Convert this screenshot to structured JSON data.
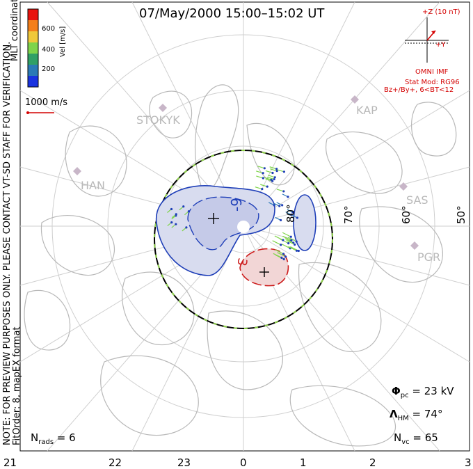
{
  "title": "07/May/2000 15:00–15:02 UT",
  "note_line1": "NOTE: FOR PREVIEW PURPOSES ONLY. PLEASE CONTACT VT-SD STAFF FOR VERIFICATION.",
  "note_line2": "FitOrder: 8, mapEX format",
  "coordinates": "MLT coordinates",
  "colorbar": {
    "label": "Vel [m/s]",
    "ticks": [
      "600",
      "400",
      "200"
    ],
    "colors": [
      "#e8140e",
      "#f47f1a",
      "#f0c83a",
      "#7fd44a",
      "#30a066",
      "#2b7ab6",
      "#1a33e0"
    ]
  },
  "reference_vector": "1000 m/s",
  "imf": {
    "z_label": "+Z (10 nT)",
    "y_label": "+Y",
    "source": "OMNI IMF",
    "model": "Stat Mod: RG96",
    "condition": "Bz+/By+, 6<BT<12"
  },
  "stats": {
    "phi_pc": "23 kV",
    "lambda_hm": "74°",
    "n_vc": "65",
    "n_rads": "6"
  },
  "mlt_ticks": [
    "21",
    "22",
    "23",
    "0",
    "1",
    "2",
    "3"
  ],
  "lat_labels": [
    "80°",
    "70°",
    "60°",
    "50°"
  ],
  "stations": [
    "STOKYK",
    "KAP",
    "HAN",
    "SAS",
    "PGR"
  ],
  "contour_labels": [
    "-9",
    "3"
  ]
}
